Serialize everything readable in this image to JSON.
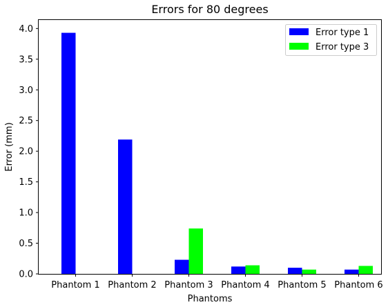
{
  "chart_data": {
    "type": "bar",
    "title": "Errors for 80 degrees",
    "xlabel": "Phantoms",
    "ylabel": "Error (mm)",
    "categories": [
      "Phantom 1",
      "Phantom 2",
      "Phantom 3",
      "Phantom 4",
      "Phantom 5",
      "Phantom 6"
    ],
    "series": [
      {
        "name": "Error type 1",
        "color": "#0000ff",
        "values": [
          3.93,
          2.19,
          0.23,
          0.12,
          0.1,
          0.07
        ]
      },
      {
        "name": "Error type 3",
        "color": "#00ff00",
        "values": [
          0.0,
          0.0,
          0.74,
          0.14,
          0.07,
          0.13
        ]
      }
    ],
    "ylim": [
      0,
      4.15
    ],
    "yticks": [
      "0.0",
      "0.5",
      "1.0",
      "1.5",
      "2.0",
      "2.5",
      "3.0",
      "3.5",
      "4.0"
    ],
    "grid": false,
    "legend_position": "top-right"
  }
}
